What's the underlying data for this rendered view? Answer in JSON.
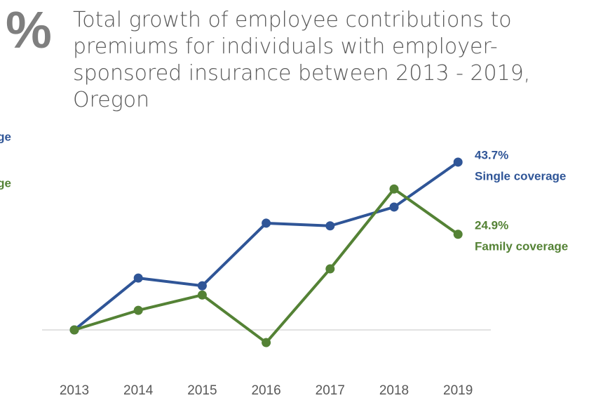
{
  "chart_data": {
    "type": "line",
    "icon": "%",
    "title": "Total growth of employee contributions to premiums for individuals with employer-sponsored insurance between 2013 - 2019, Oregon",
    "categories": [
      "2013",
      "2014",
      "2015",
      "2016",
      "2017",
      "2018",
      "2019"
    ],
    "series": [
      {
        "name": "Single coverage",
        "color": "#2f5597",
        "values": [
          0,
          13.5,
          11.5,
          27.8,
          27.1,
          32.0,
          43.7
        ],
        "value_labels": [
          null,
          null,
          null,
          null,
          null,
          null,
          "43.7%"
        ]
      },
      {
        "name": "Family coverage",
        "color": "#548235",
        "values": [
          0,
          5.1,
          9.1,
          -3.3,
          15.9,
          36.7,
          24.9
        ],
        "value_labels": [
          null,
          null,
          null,
          null,
          null,
          null,
          "24.9%"
        ]
      }
    ],
    "clipped_labels": [
      "ge",
      "ge"
    ],
    "ylim": [
      -10,
      50
    ],
    "yticks": [
      0
    ],
    "grid": true
  }
}
